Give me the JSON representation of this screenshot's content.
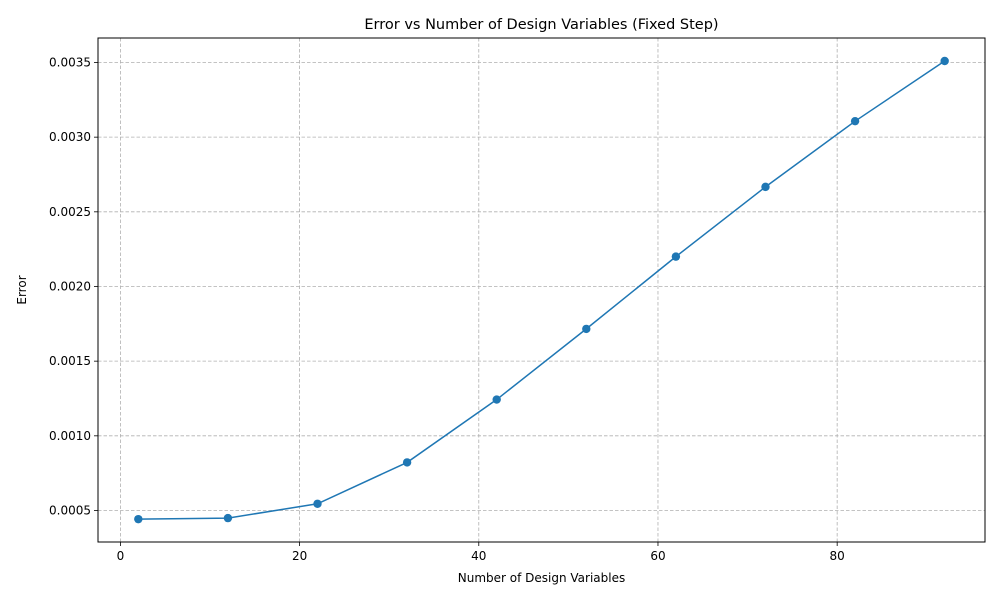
{
  "chart_data": {
    "type": "line",
    "title": "Error vs Number of Design Variables (Fixed Step)",
    "xlabel": "Number of Design Variables",
    "ylabel": "Error",
    "x": [
      2,
      12,
      22,
      32,
      42,
      52,
      62,
      72,
      82,
      92
    ],
    "series": [
      {
        "values": [
          0.000442,
          0.000449,
          0.000545,
          0.000822,
          0.001243,
          0.001716,
          0.0022,
          0.002667,
          0.003107,
          0.00351
        ]
      }
    ],
    "xlim": [
      -2.5,
      96.5
    ],
    "ylim": [
      0.000289,
      0.003664
    ],
    "x_ticks": [
      0,
      20,
      40,
      60,
      80
    ],
    "x_tick_labels": [
      "0",
      "20",
      "40",
      "60",
      "80"
    ],
    "y_ticks": [
      0.0005,
      0.001,
      0.0015,
      0.002,
      0.0025,
      0.003,
      0.0035
    ],
    "y_tick_labels": [
      "0.0005",
      "0.0010",
      "0.0015",
      "0.0020",
      "0.0025",
      "0.0030",
      "0.0035"
    ],
    "grid": true,
    "grid_style": "dashed",
    "markers": true,
    "colors": {
      "line": "#1f77b4",
      "grid": "#b0b0b0",
      "axes": "#000000"
    }
  }
}
